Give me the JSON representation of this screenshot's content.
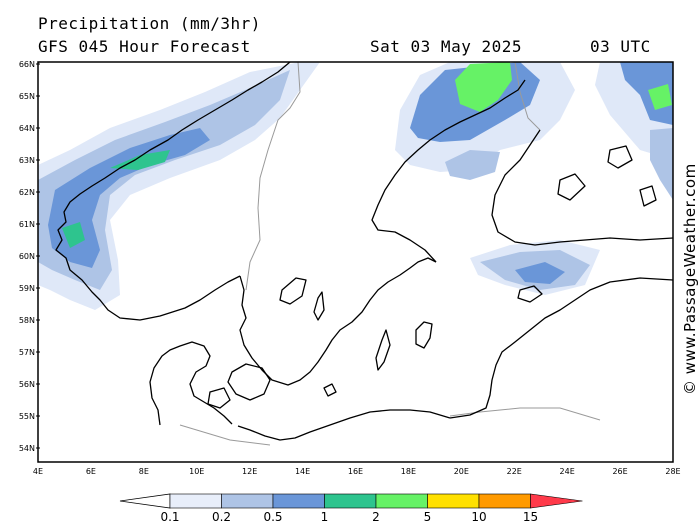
{
  "header": {
    "title": "Precipitation (mm/3hr)",
    "subtitle_left": "GFS 045 Hour Forecast",
    "date": "Sat 03 May 2025",
    "time": "03 UTC"
  },
  "axes": {
    "lat_labels": [
      "66N",
      "65N",
      "64N",
      "63N",
      "62N",
      "61N",
      "60N",
      "59N",
      "58N",
      "57N",
      "56N",
      "55N",
      "54N"
    ],
    "lon_labels": [
      "4E",
      "6E",
      "8E",
      "10E",
      "12E",
      "14E",
      "16E",
      "18E",
      "20E",
      "22E",
      "24E",
      "26E",
      "28E"
    ]
  },
  "legend": {
    "ticks": [
      "0.1",
      "0.2",
      "0.5",
      "1",
      "2",
      "5",
      "10",
      "15"
    ],
    "colors": [
      "#e8eefa",
      "#aec4e6",
      "#6a96d8",
      "#2ec48e",
      "#66f266",
      "#ffe000",
      "#ff9a00",
      "#ff3a4a"
    ]
  },
  "watermark": "© www.PassageWeather.com",
  "colors": {
    "land_outline": "#000000",
    "border": "#9a9a9a",
    "precip_light": "#dfe8f8",
    "precip_mid": "#aec4e6",
    "precip_blue": "#6a96d8",
    "precip_teal": "#2ec48e",
    "precip_green": "#66f266"
  }
}
